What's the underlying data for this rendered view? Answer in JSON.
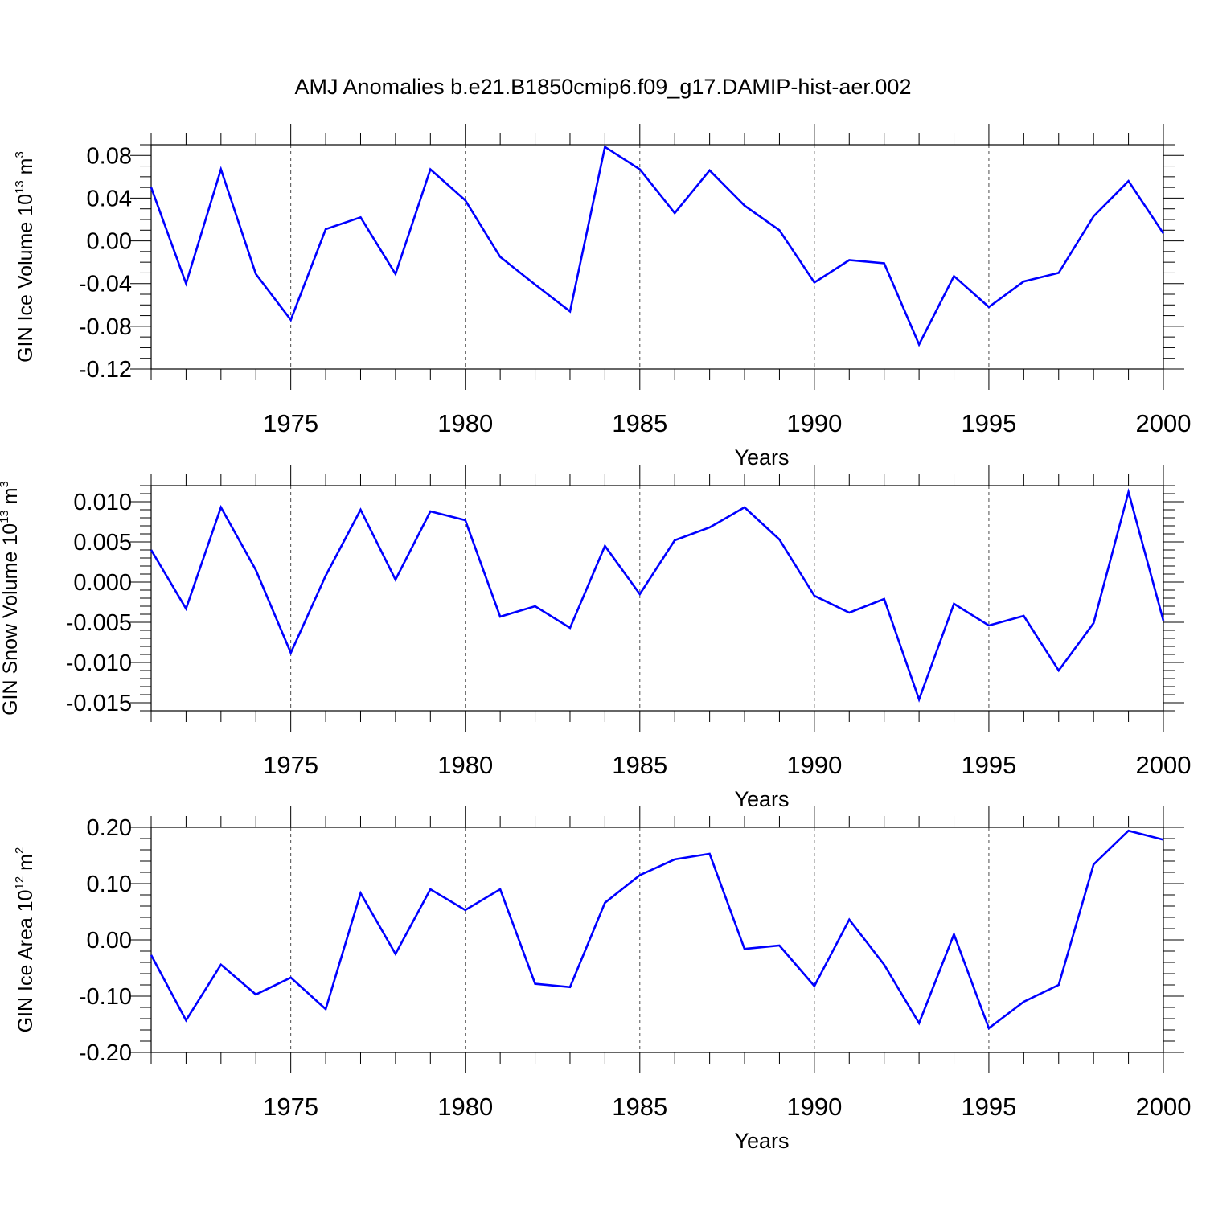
{
  "figure": {
    "title": "AMJ Anomalies b.e21.B1850cmip6.f09_g17.DAMIP-hist-aer.002",
    "line_color": "#0000ff",
    "axis_color": "#000000",
    "grid_color": "#000000"
  },
  "chart_data": [
    {
      "type": "line",
      "title": "",
      "xlabel": "Years",
      "ylabel": {
        "text": "GIN Ice Volume 10",
        "sup1": "13",
        "mid": " m",
        "sup2": "3"
      },
      "xlim": [
        1971,
        2000
      ],
      "ylim": [
        -0.12,
        0.09
      ],
      "x_ticks": [
        1975,
        1980,
        1985,
        1990,
        1995,
        2000
      ],
      "y_ticks": [
        -0.12,
        -0.08,
        -0.04,
        0.0,
        0.04,
        0.08
      ],
      "y_tick_labels": [
        "-0.12",
        "-0.08",
        "-0.04",
        "0.00",
        "0.04",
        "0.08"
      ],
      "y_minor_step": 0.01,
      "grid": "vertical dashed at major x ticks",
      "series": [
        {
          "x": [
            1971,
            1972,
            1973,
            1974,
            1975,
            1976,
            1977,
            1978,
            1979,
            1980,
            1981,
            1982,
            1983,
            1984,
            1985,
            1986,
            1987,
            1988,
            1989,
            1990,
            1991,
            1992,
            1993,
            1994,
            1995,
            1996,
            1997,
            1998,
            1999,
            2000
          ],
          "values": [
            0.05,
            -0.04,
            0.067,
            -0.031,
            -0.074,
            0.011,
            0.022,
            -0.031,
            0.067,
            0.038,
            -0.015,
            -0.041,
            -0.066,
            0.088,
            0.067,
            0.026,
            0.066,
            0.033,
            0.01,
            -0.039,
            -0.018,
            -0.021,
            -0.097,
            -0.033,
            -0.062,
            -0.038,
            -0.03,
            0.023,
            0.056,
            0.007
          ]
        }
      ]
    },
    {
      "type": "line",
      "title": "",
      "xlabel": "Years",
      "ylabel": {
        "text": "GIN Snow Volume 10",
        "sup1": "13",
        "mid": " m",
        "sup2": "3"
      },
      "xlim": [
        1971,
        2000
      ],
      "ylim": [
        -0.016,
        0.012
      ],
      "x_ticks": [
        1975,
        1980,
        1985,
        1990,
        1995,
        2000
      ],
      "y_ticks": [
        -0.015,
        -0.01,
        -0.005,
        0.0,
        0.005,
        0.01
      ],
      "y_tick_labels": [
        "-0.015",
        "-0.010",
        "-0.005",
        "0.000",
        "0.005",
        "0.010"
      ],
      "y_minor_step": 0.001,
      "grid": "vertical dashed at major x ticks",
      "series": [
        {
          "x": [
            1971,
            1972,
            1973,
            1974,
            1975,
            1976,
            1977,
            1978,
            1979,
            1980,
            1981,
            1982,
            1983,
            1984,
            1985,
            1986,
            1987,
            1988,
            1989,
            1990,
            1991,
            1992,
            1993,
            1994,
            1995,
            1996,
            1997,
            1998,
            1999,
            2000
          ],
          "values": [
            0.004,
            -0.0033,
            0.0093,
            0.0015,
            -0.0088,
            0.0008,
            0.009,
            0.0003,
            0.0088,
            0.0077,
            -0.0043,
            -0.003,
            -0.0057,
            0.0045,
            -0.0015,
            0.0052,
            0.0068,
            0.0093,
            0.0053,
            -0.0017,
            -0.0038,
            -0.0021,
            -0.0146,
            -0.0027,
            -0.0054,
            -0.0042,
            -0.011,
            -0.0051,
            0.0112,
            -0.0048
          ]
        }
      ]
    },
    {
      "type": "line",
      "title": "",
      "xlabel": "Years",
      "ylabel": {
        "text": "GIN Ice Area 10",
        "sup1": "12",
        "mid": " m",
        "sup2": "2"
      },
      "xlim": [
        1971,
        2000
      ],
      "ylim": [
        -0.2,
        0.2
      ],
      "x_ticks": [
        1975,
        1980,
        1985,
        1990,
        1995,
        2000
      ],
      "y_ticks": [
        -0.2,
        -0.1,
        0.0,
        0.1,
        0.2
      ],
      "y_tick_labels": [
        "-0.20",
        "-0.10",
        "0.00",
        "0.10",
        "0.20"
      ],
      "y_minor_step": 0.02,
      "grid": "vertical dashed at major x ticks",
      "series": [
        {
          "x": [
            1971,
            1972,
            1973,
            1974,
            1975,
            1976,
            1977,
            1978,
            1979,
            1980,
            1981,
            1982,
            1983,
            1984,
            1985,
            1986,
            1987,
            1988,
            1989,
            1990,
            1991,
            1992,
            1993,
            1994,
            1995,
            1996,
            1997,
            1998,
            1999,
            2000
          ],
          "values": [
            -0.027,
            -0.143,
            -0.044,
            -0.097,
            -0.067,
            -0.123,
            0.083,
            -0.025,
            0.09,
            0.053,
            0.09,
            -0.078,
            -0.084,
            0.066,
            0.115,
            0.143,
            0.153,
            -0.016,
            -0.01,
            -0.082,
            0.036,
            -0.044,
            -0.148,
            0.01,
            -0.157,
            -0.11,
            -0.08,
            0.134,
            0.194,
            0.178
          ]
        }
      ]
    }
  ]
}
